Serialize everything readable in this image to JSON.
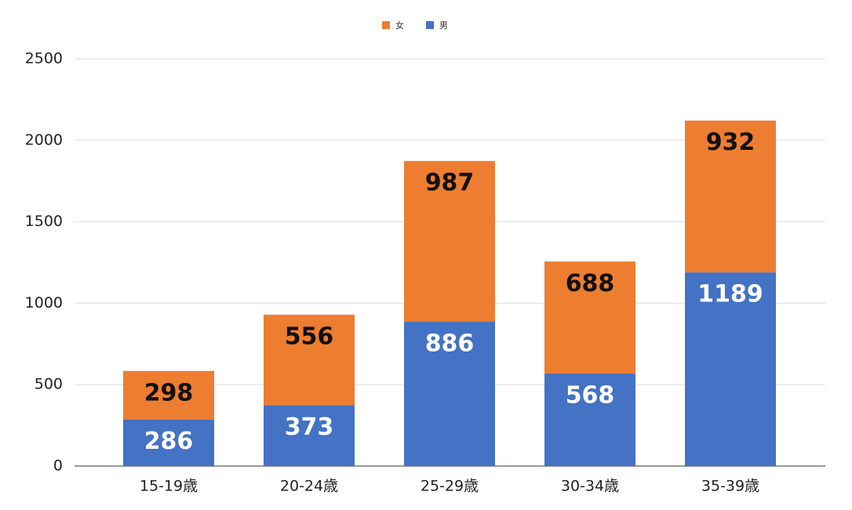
{
  "chart_data": {
    "type": "stacked_bar",
    "categories": [
      "15-19歳",
      "20-24歳",
      "25-29歳",
      "30-34歳",
      "35-39歳"
    ],
    "series": [
      {
        "name": "女",
        "color": "#ed7d31",
        "values": [
          298,
          556,
          987,
          688,
          932
        ]
      },
      {
        "name": "男",
        "color": "#4472c4",
        "values": [
          286,
          373,
          886,
          568,
          1189
        ]
      }
    ],
    "ylim": [
      0,
      2500
    ],
    "yticks": [
      0,
      500,
      1000,
      1500,
      2000,
      2500
    ],
    "grid": true,
    "legend": "top"
  }
}
